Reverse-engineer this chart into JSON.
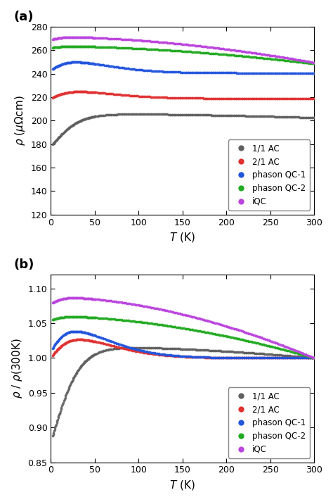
{
  "panel_a": {
    "ylabel": "\\rho (\\mu\\Omega cm)",
    "xlabel": "T (K)",
    "xlim": [
      0,
      300
    ],
    "ylim": [
      120,
      280
    ],
    "yticks": [
      120,
      140,
      160,
      180,
      200,
      220,
      240,
      260,
      280
    ],
    "xticks": [
      0,
      50,
      100,
      150,
      200,
      250,
      300
    ]
  },
  "panel_b": {
    "ylabel": "\\rho / \\rho (300K)",
    "xlabel": "T (K)",
    "xlim": [
      0,
      300
    ],
    "ylim": [
      0.85,
      1.12
    ],
    "yticks": [
      0.85,
      0.9,
      0.95,
      1.0,
      1.05,
      1.1
    ],
    "xticks": [
      0,
      50,
      100,
      150,
      200,
      250,
      300
    ]
  },
  "series": {
    "1/1 AC": {
      "color": "#606060",
      "rho0": 178.0,
      "rho300": 202.5,
      "peak_val": 206.0,
      "peak_T": 170,
      "rise_tau": 32,
      "type": "rise_peak"
    },
    "2/1 AC": {
      "color": "#e03030",
      "rho0": 219.0,
      "rho300": 218.0,
      "peak_val": 226.5,
      "peak_T": 65,
      "rise_tau": 20,
      "type": "peak_decline"
    },
    "phason QC-1": {
      "color": "#2255dd",
      "rho0": 243.0,
      "rho300": 239.0,
      "peak_val": 252.5,
      "peak_T": 60,
      "rise_tau": 18,
      "type": "peak_decline"
    },
    "phason QC-2": {
      "color": "#22aa22",
      "rho0": 262.0,
      "rho300": 248.5,
      "peak_val": 263.5,
      "peak_T": 80,
      "rise_tau": 15,
      "type": "plateau_decline"
    },
    "iQC": {
      "color": "#bb44dd",
      "rho0": 269.0,
      "rho300": 249.5,
      "peak_val": 271.5,
      "peak_T": 100,
      "rise_tau": 15,
      "type": "plateau_decline"
    }
  },
  "legend_labels": [
    "1/1 AC",
    "2/1 AC",
    "phason QC-1",
    "phason QC-2",
    "iQC"
  ],
  "legend_colors": [
    "#606060",
    "#e03030",
    "#2255dd",
    "#22aa22",
    "#bb44dd"
  ],
  "figsize": [
    4.74,
    7.13
  ],
  "dpi": 100
}
